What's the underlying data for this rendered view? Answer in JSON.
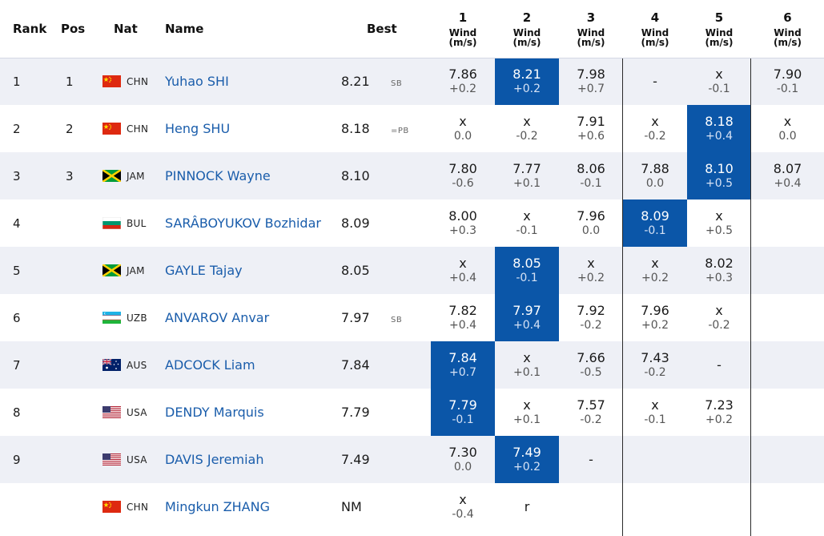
{
  "headers": {
    "rank": "Rank",
    "pos": "Pos",
    "nat": "Nat",
    "name": "Name",
    "best": "Best",
    "attempts": [
      {
        "n": "1",
        "w1": "Wind",
        "w2": "(m/s)"
      },
      {
        "n": "2",
        "w1": "Wind",
        "w2": "(m/s)"
      },
      {
        "n": "3",
        "w1": "Wind",
        "w2": "(m/s)"
      },
      {
        "n": "4",
        "w1": "Wind",
        "w2": "(m/s)"
      },
      {
        "n": "5",
        "w1": "Wind",
        "w2": "(m/s)"
      },
      {
        "n": "6",
        "w1": "Wind",
        "w2": "(m/s)"
      }
    ]
  },
  "rows": [
    {
      "rank": "1",
      "pos": "1",
      "flag": "china-flag-icon",
      "nat": "CHN",
      "name": "Yuhao SHI",
      "best": "8.21",
      "tag": "SB",
      "a": [
        {
          "m": "7.86",
          "w": "+0.2"
        },
        {
          "m": "8.21",
          "w": "+0.2",
          "hl": true
        },
        {
          "m": "7.98",
          "w": "+0.7"
        },
        {
          "m": "-",
          "w": ""
        },
        {
          "m": "x",
          "w": "-0.1"
        },
        {
          "m": "7.90",
          "w": "-0.1"
        }
      ]
    },
    {
      "rank": "2",
      "pos": "2",
      "flag": "china-flag-icon",
      "nat": "CHN",
      "name": "Heng SHU",
      "best": "8.18",
      "tag": "=PB",
      "a": [
        {
          "m": "x",
          "w": "0.0"
        },
        {
          "m": "x",
          "w": "-0.2"
        },
        {
          "m": "7.91",
          "w": "+0.6"
        },
        {
          "m": "x",
          "w": "-0.2"
        },
        {
          "m": "8.18",
          "w": "+0.4",
          "hl": true
        },
        {
          "m": "x",
          "w": "0.0"
        }
      ]
    },
    {
      "rank": "3",
      "pos": "3",
      "flag": "jamaica-flag-icon",
      "nat": "JAM",
      "name": "PINNOCK Wayne",
      "best": "8.10",
      "tag": "",
      "a": [
        {
          "m": "7.80",
          "w": "-0.6"
        },
        {
          "m": "7.77",
          "w": "+0.1"
        },
        {
          "m": "8.06",
          "w": "-0.1"
        },
        {
          "m": "7.88",
          "w": "0.0"
        },
        {
          "m": "8.10",
          "w": "+0.5",
          "hl": true
        },
        {
          "m": "8.07",
          "w": "+0.4"
        }
      ]
    },
    {
      "rank": "4",
      "pos": "",
      "flag": "bulgaria-flag-icon",
      "nat": "BUL",
      "name": "SARÂBOYUKOV Bozhidar",
      "best": "8.09",
      "tag": "",
      "a": [
        {
          "m": "8.00",
          "w": "+0.3"
        },
        {
          "m": "x",
          "w": "-0.1"
        },
        {
          "m": "7.96",
          "w": "0.0"
        },
        {
          "m": "8.09",
          "w": "-0.1",
          "hl": true
        },
        {
          "m": "x",
          "w": "+0.5"
        },
        {
          "m": "",
          "w": ""
        }
      ]
    },
    {
      "rank": "5",
      "pos": "",
      "flag": "jamaica-flag-icon",
      "nat": "JAM",
      "name": "GAYLE Tajay",
      "best": "8.05",
      "tag": "",
      "a": [
        {
          "m": "x",
          "w": "+0.4"
        },
        {
          "m": "8.05",
          "w": "-0.1",
          "hl": true
        },
        {
          "m": "x",
          "w": "+0.2"
        },
        {
          "m": "x",
          "w": "+0.2"
        },
        {
          "m": "8.02",
          "w": "+0.3"
        },
        {
          "m": "",
          "w": ""
        }
      ]
    },
    {
      "rank": "6",
      "pos": "",
      "flag": "uzbekistan-flag-icon",
      "nat": "UZB",
      "name": "ANVAROV Anvar",
      "best": "7.97",
      "tag": "SB",
      "a": [
        {
          "m": "7.82",
          "w": "+0.4"
        },
        {
          "m": "7.97",
          "w": "+0.4",
          "hl": true
        },
        {
          "m": "7.92",
          "w": "-0.2"
        },
        {
          "m": "7.96",
          "w": "+0.2"
        },
        {
          "m": "x",
          "w": "-0.2"
        },
        {
          "m": "",
          "w": ""
        }
      ]
    },
    {
      "rank": "7",
      "pos": "",
      "flag": "australia-flag-icon",
      "nat": "AUS",
      "name": "ADCOCK Liam",
      "best": "7.84",
      "tag": "",
      "a": [
        {
          "m": "7.84",
          "w": "+0.7",
          "hl": true
        },
        {
          "m": "x",
          "w": "+0.1"
        },
        {
          "m": "7.66",
          "w": "-0.5"
        },
        {
          "m": "7.43",
          "w": "-0.2"
        },
        {
          "m": "-",
          "w": ""
        },
        {
          "m": "",
          "w": ""
        }
      ]
    },
    {
      "rank": "8",
      "pos": "",
      "flag": "usa-flag-icon",
      "nat": "USA",
      "name": "DENDY Marquis",
      "best": "7.79",
      "tag": "",
      "a": [
        {
          "m": "7.79",
          "w": "-0.1",
          "hl": true
        },
        {
          "m": "x",
          "w": "+0.1"
        },
        {
          "m": "7.57",
          "w": "-0.2"
        },
        {
          "m": "x",
          "w": "-0.1"
        },
        {
          "m": "7.23",
          "w": "+0.2"
        },
        {
          "m": "",
          "w": ""
        }
      ]
    },
    {
      "rank": "9",
      "pos": "",
      "flag": "usa-flag-icon",
      "nat": "USA",
      "name": "DAVIS Jeremiah",
      "best": "7.49",
      "tag": "",
      "a": [
        {
          "m": "7.30",
          "w": "0.0"
        },
        {
          "m": "7.49",
          "w": "+0.2",
          "hl": true
        },
        {
          "m": "-",
          "w": ""
        },
        {
          "m": "",
          "w": ""
        },
        {
          "m": "",
          "w": ""
        },
        {
          "m": "",
          "w": ""
        }
      ]
    },
    {
      "rank": "",
      "pos": "",
      "flag": "china-flag-icon",
      "nat": "CHN",
      "name": "Mingkun ZHANG",
      "best": "NM",
      "tag": "",
      "a": [
        {
          "m": "x",
          "w": "-0.4"
        },
        {
          "m": "r",
          "w": ""
        },
        {
          "m": "",
          "w": ""
        },
        {
          "m": "",
          "w": ""
        },
        {
          "m": "",
          "w": ""
        },
        {
          "m": "",
          "w": ""
        }
      ]
    }
  ],
  "colors": {
    "highlight": "#0b56a8",
    "name_link": "#1a5dab",
    "row_alt": "#eef0f6"
  }
}
